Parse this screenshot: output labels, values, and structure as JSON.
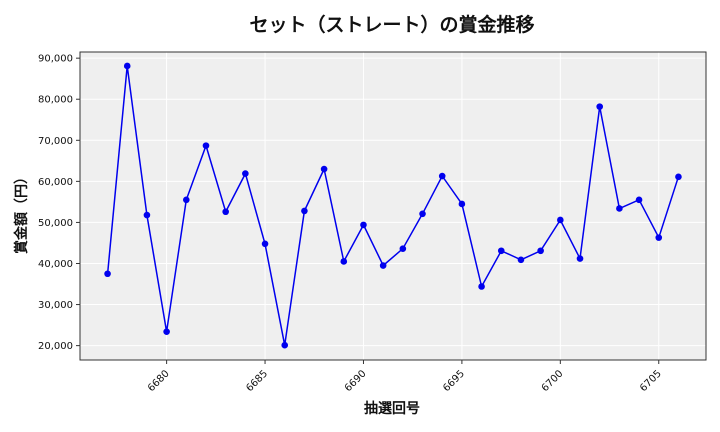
{
  "chart_data": {
    "type": "line",
    "title": "セット（ストレート）の賞金推移",
    "xlabel": "抽選回号",
    "ylabel": "賞金額（円）",
    "x": [
      6677,
      6678,
      6679,
      6680,
      6681,
      6682,
      6683,
      6684,
      6685,
      6686,
      6687,
      6688,
      6689,
      6690,
      6691,
      6692,
      6693,
      6694,
      6695,
      6696,
      6697,
      6698,
      6699,
      6700,
      6701,
      6702,
      6703,
      6704,
      6705,
      6706
    ],
    "series": [
      {
        "values": [
          37500,
          88100,
          51800,
          23400,
          55500,
          68700,
          52600,
          61900,
          44800,
          20100,
          52800,
          63000,
          40500,
          49400,
          39500,
          43600,
          52100,
          61300,
          54500,
          34400,
          43100,
          40900,
          43100,
          50600,
          41200,
          78200,
          53400,
          55500,
          46300,
          61100
        ]
      }
    ],
    "xlim": [
      6675.6,
      6707.4
    ],
    "ylim": [
      16500,
      91500
    ],
    "xticks": [
      6680,
      6685,
      6690,
      6695,
      6700,
      6705
    ],
    "xtick_labels": [
      "6680",
      "6685",
      "6690",
      "6695",
      "6700",
      "6705"
    ],
    "yticks": [
      20000,
      30000,
      40000,
      50000,
      60000,
      70000,
      80000,
      90000
    ],
    "ytick_labels": [
      "20,000",
      "30,000",
      "40,000",
      "50,000",
      "60,000",
      "70,000",
      "80,000",
      "90,000"
    ],
    "grid": true,
    "colors": {
      "line": "#0000ee",
      "marker": "#0000ee",
      "plot_bg": "#efefef",
      "grid": "#ffffff"
    }
  }
}
